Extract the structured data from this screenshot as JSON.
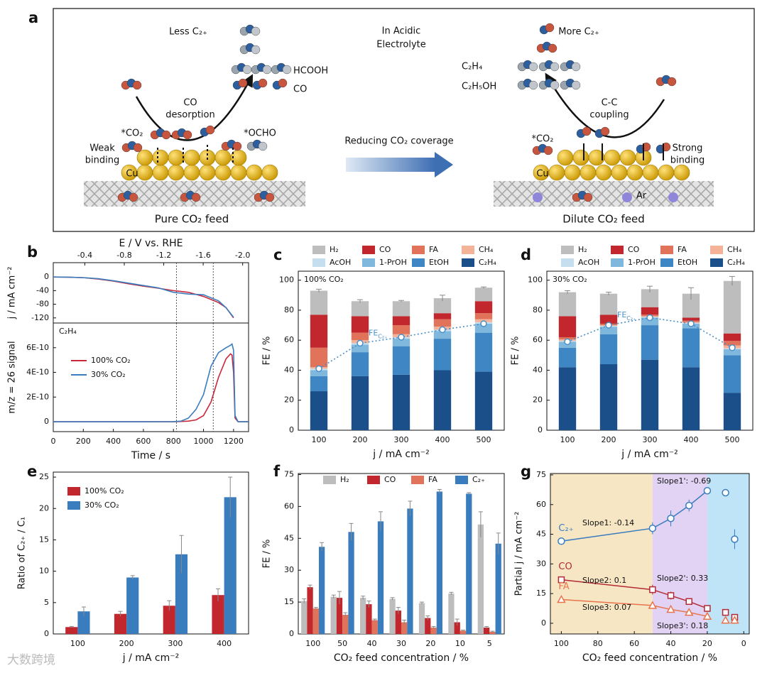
{
  "panel_a": {
    "label": "a",
    "texts": [
      "Less C₂₊",
      "In Acidic",
      "Electrolyte",
      "More C₂₊",
      "HCOOH",
      "CO",
      "C₂H₄",
      "C₂H₅OH",
      "CO",
      "desorption",
      "C-C",
      "coupling",
      "*CO₂",
      "*OCHO",
      "Weak",
      "binding",
      "Reducing CO₂ coverage",
      "*CO₂",
      "Strong",
      "binding",
      "Cu",
      "Cu",
      "Ar",
      "Pure CO₂ feed",
      "Dilute CO₂ feed"
    ]
  },
  "watermark": "大数跨境",
  "chart_data": [
    {
      "type": "line",
      "panel": "b",
      "x2label": "E / V vs. RHE",
      "ylabel": "j / mA cm⁻²",
      "x": [
        0,
        100,
        200,
        300,
        400,
        500,
        600,
        700,
        800,
        900,
        1000,
        1100,
        1150,
        1200
      ],
      "xlim": [
        0,
        1300
      ],
      "x2lim": [
        -0.08,
        -2.06
      ],
      "x2ticks": [
        -0.4,
        -0.8,
        -1.2,
        -1.6,
        {
          "value": -2,
          "label": "-2.0"
        }
      ],
      "ylim": [
        -135,
        42
      ],
      "yticks": [
        0,
        -40,
        -80,
        -120
      ],
      "vlines": [
        820,
        1065
      ],
      "series": [
        {
          "name": "100% CO₂",
          "color": "#c8283a",
          "values": [
            0,
            -0.5,
            -2,
            -6,
            -12,
            -20,
            -27,
            -33,
            -40,
            -45,
            -57,
            -75,
            -90,
            -120
          ]
        },
        {
          "name": "30% CO₂",
          "color": "#3a7dbf",
          "values": [
            0,
            -0.5,
            -2,
            -5,
            -11,
            -18,
            -25,
            -32,
            -45,
            -50,
            -52,
            -70,
            -90,
            -118
          ]
        }
      ]
    },
    {
      "type": "line",
      "xlabel": "Time / s",
      "ylabel": "m/z = 26 signal",
      "annotation": "C₂H₄",
      "x": [
        0,
        200,
        400,
        600,
        800,
        850,
        900,
        950,
        1000,
        1050,
        1100,
        1150,
        1180,
        1190,
        1200,
        1210,
        1230,
        1300
      ],
      "xlim": [
        0,
        1300
      ],
      "xticks": [
        0,
        200,
        400,
        600,
        800,
        1000,
        1200
      ],
      "ylim": [
        -8e-11,
        8e-10
      ],
      "yticks": [
        0,
        {
          "value": 2e-10,
          "label": "2E-10"
        },
        {
          "value": 4e-10,
          "label": "4E-10"
        },
        {
          "value": 6e-10,
          "label": "6E-10"
        }
      ],
      "vlines": [
        820,
        1065
      ],
      "legend": "center left",
      "series": [
        {
          "name": "100% CO₂",
          "color": "#c8283a",
          "values": [
            0,
            0,
            0,
            0,
            0,
            2e-12,
            5e-12,
            1.5e-11,
            5e-11,
            1.6e-10,
            3.6e-10,
            5.1e-10,
            5.5e-10,
            5.4e-10,
            4e-10,
            3e-11,
            0,
            0
          ]
        },
        {
          "name": "30% CO₂",
          "color": "#3a7dbf",
          "values": [
            0,
            0,
            0,
            0,
            1e-12,
            5e-12,
            3e-11,
            1e-10,
            2.2e-10,
            4.5e-10,
            5.6e-10,
            6e-10,
            6.2e-10,
            6.3e-10,
            5.8e-10,
            5e-11,
            0,
            0
          ]
        }
      ]
    },
    {
      "type": "stacked_bar",
      "panel": "c",
      "annotation": "100% CO₂",
      "xlabel": "j / mA cm⁻²",
      "ylabel": "FE / %",
      "categories": [
        "100",
        "200",
        "300",
        "400",
        "500"
      ],
      "ylim": [
        0,
        106
      ],
      "yticks": [
        0,
        20,
        40,
        60,
        80,
        100
      ],
      "legend": "top",
      "series": [
        {
          "name": "H₂",
          "color": "#bdbdbd",
          "values": [
            16,
            10,
            10,
            10,
            9
          ],
          "errors": [
            1,
            1,
            0.5,
            2,
            0.5
          ]
        },
        {
          "name": "CO",
          "color": "#c1272d",
          "values": [
            22,
            11,
            6,
            4,
            8
          ]
        },
        {
          "name": "FA",
          "color": "#e0735a",
          "values": [
            13,
            5,
            6,
            5,
            4
          ]
        },
        {
          "name": "CH₄",
          "color": "#f4b398",
          "values": [
            1,
            2,
            2,
            2,
            2
          ]
        },
        {
          "name": "AcOH",
          "color": "#c5dff0",
          "values": [
            1,
            1,
            1,
            1,
            1
          ]
        },
        {
          "name": "1-PrOH",
          "color": "#7fb8dc",
          "values": [
            4,
            5,
            5,
            5,
            6
          ]
        },
        {
          "name": "EtOH",
          "color": "#3f87c4",
          "values": [
            10,
            16,
            19,
            21,
            26
          ]
        },
        {
          "name": "C₂H₄",
          "color": "#1a4f8a",
          "values": [
            26,
            36,
            37,
            40,
            39
          ]
        }
      ],
      "fe_line": {
        "label": "FE",
        "label_sub": "C₂₊",
        "color": "#4a8fc9",
        "values": [
          41,
          58,
          62,
          67,
          71
        ]
      }
    },
    {
      "type": "stacked_bar",
      "panel": "d",
      "annotation": "30% CO₂",
      "xlabel": "j / mA cm⁻²",
      "ylabel": "FE / %",
      "categories": [
        "100",
        "200",
        "300",
        "400",
        "500"
      ],
      "ylim": [
        0,
        106
      ],
      "yticks": [
        0,
        20,
        40,
        60,
        80,
        100
      ],
      "legend": "top",
      "series": [
        {
          "name": "H₂",
          "color": "#bdbdbd",
          "values": [
            16,
            14,
            12,
            16,
            35
          ],
          "errors": [
            1,
            1,
            2,
            4,
            3
          ]
        },
        {
          "name": "CO",
          "color": "#c1272d",
          "values": [
            14,
            6,
            5,
            2,
            5
          ]
        },
        {
          "name": "FA",
          "color": "#e0735a",
          "values": [
            1.5,
            1,
            1,
            1,
            3
          ]
        },
        {
          "name": "CH₄",
          "color": "#f4b398",
          "values": [
            1,
            0.5,
            0.5,
            0.5,
            2
          ]
        },
        {
          "name": "AcOH",
          "color": "#c5dff0",
          "values": [
            0.5,
            0.5,
            0.5,
            0.5,
            0.5
          ]
        },
        {
          "name": "1-PrOH",
          "color": "#7fb8dc",
          "values": [
            4,
            5,
            5,
            3,
            4
          ]
        },
        {
          "name": "EtOH",
          "color": "#3f87c4",
          "values": [
            13,
            20,
            23,
            26,
            25
          ]
        },
        {
          "name": "C₂H₄",
          "color": "#1a4f8a",
          "values": [
            42,
            44,
            47,
            42,
            25
          ]
        }
      ],
      "fe_line": {
        "label": "FE",
        "label_sub": "C₂₊",
        "color": "#4a8fc9",
        "values": [
          59,
          70,
          75,
          71,
          55
        ]
      }
    },
    {
      "type": "grouped_bar",
      "panel": "e",
      "xlabel": "j / mA cm⁻²",
      "ylabel": "Ratio of C₂₊ / C₁",
      "categories": [
        "100",
        "200",
        "300",
        "400"
      ],
      "ylim": [
        0,
        25.8
      ],
      "yticks": [
        0,
        5,
        10,
        15,
        20,
        25
      ],
      "legend": "upper left",
      "series": [
        {
          "name": "100% CO₂",
          "color": "#c1272d",
          "values": [
            1.1,
            3.2,
            4.5,
            6.2
          ],
          "errors": [
            0.1,
            0.4,
            0.8,
            1.0
          ]
        },
        {
          "name": "30% CO₂",
          "color": "#3a7dbf",
          "values": [
            3.6,
            9.0,
            12.7,
            21.8
          ],
          "errors": [
            0.7,
            0.3,
            3.0,
            3.2
          ]
        }
      ]
    },
    {
      "type": "grouped_bar",
      "panel": "f",
      "xlabel": "CO₂ feed concentration / %",
      "ylabel": "FE / %",
      "categories": [
        "100",
        "50",
        "40",
        "30",
        "20",
        "10",
        "5"
      ],
      "ylim": [
        0,
        75.5
      ],
      "yticks": [
        0,
        15,
        30,
        45,
        60,
        75
      ],
      "legend": "top",
      "series": [
        {
          "name": "H₂",
          "color": "#bdbdbd",
          "values": [
            15.5,
            17.5,
            17,
            16.5,
            14.5,
            19,
            51.5
          ],
          "errors": [
            1,
            0.8,
            0.8,
            0.6,
            0.5,
            0.6,
            6
          ]
        },
        {
          "name": "CO",
          "color": "#c1272d",
          "values": [
            22,
            17,
            14,
            11,
            7.5,
            5.5,
            3
          ],
          "errors": [
            1,
            3,
            1.5,
            1.5,
            1,
            1.5,
            0.5
          ]
        },
        {
          "name": "FA",
          "color": "#e0735a",
          "values": [
            12,
            9,
            6.5,
            5.5,
            3,
            1.5,
            1
          ],
          "errors": [
            0.5,
            1,
            0.5,
            1,
            0.5,
            0.3,
            0.3
          ]
        },
        {
          "name": "C₂₊",
          "color": "#3a7dbf",
          "values": [
            41,
            48,
            53,
            59,
            67,
            66,
            42.5
          ],
          "errors": [
            2,
            4,
            4.5,
            3.5,
            1,
            0.5,
            5
          ]
        }
      ]
    },
    {
      "type": "scatter",
      "panel": "g",
      "xlabel": "CO₂ feed concentration / %",
      "ylabel": "Partial j / mA cm⁻²",
      "x": [
        100,
        50,
        40,
        30,
        20,
        10,
        5
      ],
      "xlim": [
        106,
        -3
      ],
      "xticks": [
        100,
        80,
        60,
        40,
        20,
        0
      ],
      "ylim": [
        -5.4,
        75.7
      ],
      "yticks": [
        0,
        15,
        30,
        45,
        60,
        75
      ],
      "region_bounds": [
        50,
        20
      ],
      "region_colors": [
        "#f7e6c4",
        "#e2d3f5",
        "#bfe3f7"
      ],
      "series": [
        {
          "name": "C₂₊",
          "color": "#3a7dbf",
          "marker": "circle",
          "values": [
            41.5,
            48,
            53,
            59.5,
            67,
            66,
            42.5
          ],
          "errors": [
            0,
            3,
            4,
            3,
            1,
            0,
            5
          ]
        },
        {
          "name": "CO",
          "color": "#b22a35",
          "marker": "square",
          "values": [
            22,
            17,
            14,
            11,
            7.5,
            5.5,
            3
          ],
          "errors": [
            0,
            2.5,
            2,
            1.5,
            1,
            0,
            1
          ]
        },
        {
          "name": "FA",
          "color": "#e8744c",
          "marker": "triangle",
          "values": [
            12,
            9,
            7,
            5.5,
            3.5,
            1.5,
            1.5
          ],
          "errors": [
            0,
            1,
            0.5,
            1,
            1,
            0,
            0.5
          ]
        }
      ],
      "annotations": [
        "Slope1: -0.14",
        "Slope1': -0.69",
        "Slope2: 0.1",
        "Slope2': 0.33",
        "Slope3: 0.07",
        "Slope3': 0.18"
      ]
    }
  ]
}
